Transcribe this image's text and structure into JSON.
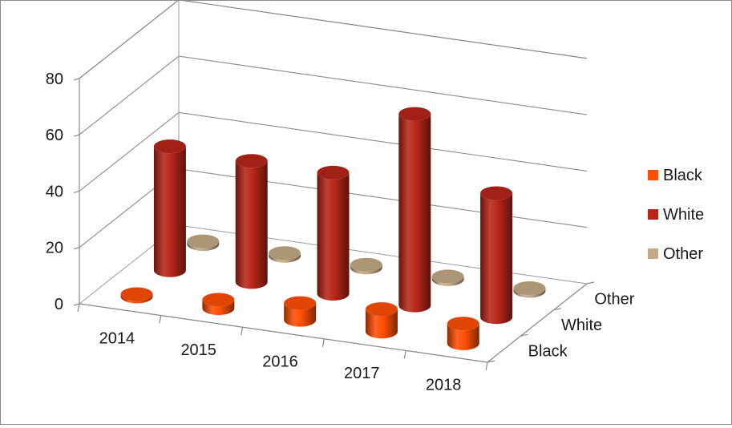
{
  "chart_data": {
    "type": "bar",
    "subtype": "3d-cylinder",
    "title": "",
    "xlabel": "",
    "ylabel": "",
    "categories": [
      "2014",
      "2015",
      "2016",
      "2017",
      "2018"
    ],
    "depth_categories": [
      "Black",
      "White",
      "Other"
    ],
    "series": [
      {
        "name": "Black",
        "values": [
          0,
          3,
          6,
          8,
          7
        ],
        "color": "#ff4e05"
      },
      {
        "name": "White",
        "values": [
          44,
          43,
          43,
          68,
          44
        ],
        "color": "#b8261a"
      },
      {
        "name": "Other",
        "values": [
          1,
          1,
          1,
          1,
          1
        ],
        "color": "#c4aa86"
      }
    ],
    "yticks": [
      0,
      20,
      40,
      60,
      80
    ],
    "ylim": [
      0,
      80
    ],
    "grid": true,
    "legend": {
      "position": "right",
      "entries": [
        "Black",
        "White",
        "Other"
      ]
    }
  }
}
